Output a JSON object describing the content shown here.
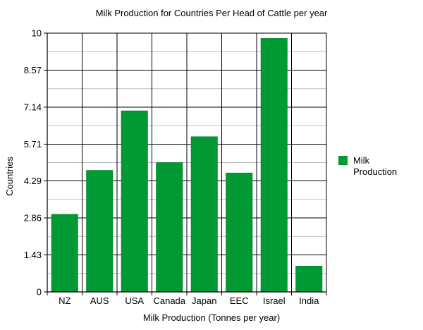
{
  "chart_data": {
    "type": "bar",
    "title": "Milk Production for Countries Per Head of Cattle per year",
    "xlabel": "Milk Production (Tonnes per year)",
    "ylabel": "Countries",
    "categories": [
      "NZ",
      "AUS",
      "USA",
      "Canada",
      "Japan",
      "EEC",
      "Israel",
      "India"
    ],
    "series": [
      {
        "name": "Milk Production",
        "values": [
          3.0,
          4.7,
          7.0,
          5.0,
          6.0,
          4.6,
          9.8,
          1.0
        ]
      }
    ],
    "ylim": [
      0,
      10
    ],
    "yticks": [
      0,
      1.43,
      2.86,
      4.29,
      5.71,
      7.14,
      8.57,
      10
    ],
    "ytick_labels": [
      "0",
      "1.43",
      "2.86",
      "4.29",
      "5.71",
      "7.14",
      "8.57",
      "10"
    ],
    "grid": true,
    "legend": "right",
    "colors": {
      "bar": "#009933",
      "bar_stroke": "#007a28",
      "grid_major": "#000000",
      "grid_minor": "#bfbfbf",
      "axis": "#000000"
    }
  }
}
